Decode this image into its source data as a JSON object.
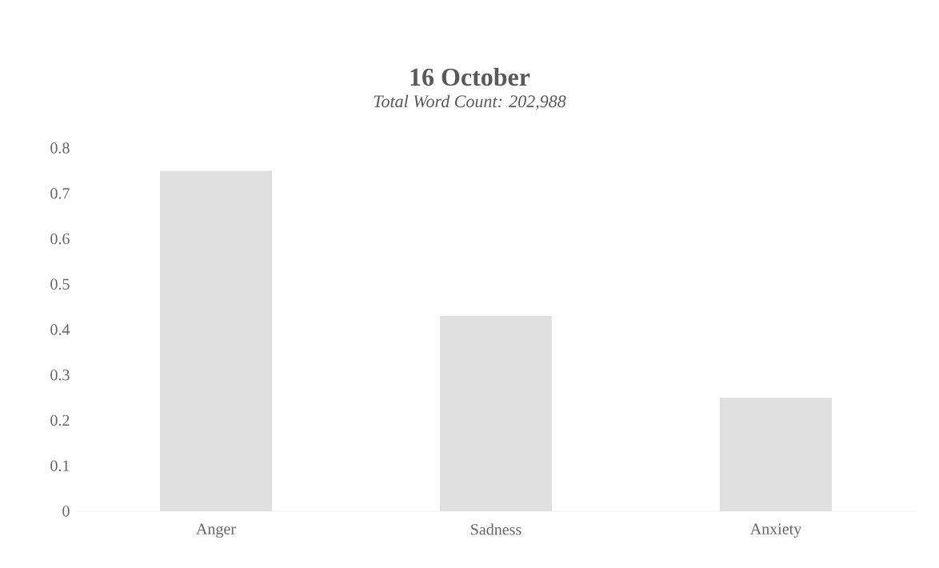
{
  "chart_data": {
    "type": "bar",
    "title": "16 October",
    "subtitle": "Total Word Count:  202,988",
    "categories": [
      "Anger",
      "Sadness",
      "Anxiety"
    ],
    "values": [
      0.75,
      0.43,
      0.25
    ],
    "color": "#e0e0e0",
    "ylim": [
      0,
      0.8
    ],
    "yticks": [
      0,
      0.1,
      0.2,
      0.3,
      0.4,
      0.5,
      0.6,
      0.7,
      0.8
    ]
  }
}
